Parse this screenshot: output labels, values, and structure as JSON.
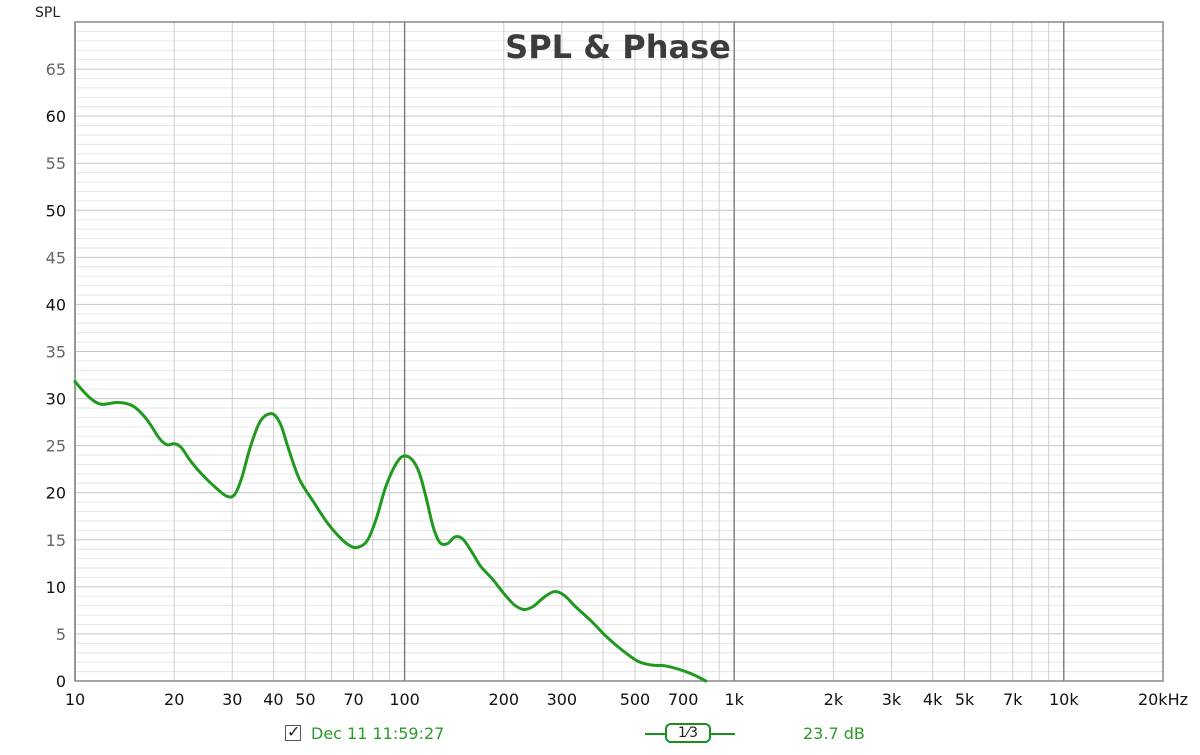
{
  "chart_data": {
    "type": "line",
    "title": "SPL & Phase",
    "ylabel": "SPL",
    "x_scale": "log",
    "xlim": [
      10,
      20000
    ],
    "ylim": [
      0,
      70
    ],
    "y_ticks": [
      0,
      5,
      10,
      15,
      20,
      25,
      30,
      35,
      40,
      45,
      50,
      55,
      60,
      65
    ],
    "x_ticks": [
      {
        "v": 10,
        "label": "10"
      },
      {
        "v": 20,
        "label": "20"
      },
      {
        "v": 30,
        "label": "30"
      },
      {
        "v": 40,
        "label": "40"
      },
      {
        "v": 50,
        "label": "50"
      },
      {
        "v": 70,
        "label": "70"
      },
      {
        "v": 100,
        "label": "100"
      },
      {
        "v": 200,
        "label": "200"
      },
      {
        "v": 300,
        "label": "300"
      },
      {
        "v": 500,
        "label": "500"
      },
      {
        "v": 700,
        "label": "700"
      },
      {
        "v": 1000,
        "label": "1k"
      },
      {
        "v": 2000,
        "label": "2k"
      },
      {
        "v": 3000,
        "label": "3k"
      },
      {
        "v": 4000,
        "label": "4k"
      },
      {
        "v": 5000,
        "label": "5k"
      },
      {
        "v": 7000,
        "label": "7k"
      },
      {
        "v": 10000,
        "label": "10k"
      },
      {
        "v": 20000,
        "label": "20kHz"
      }
    ],
    "grid": true,
    "series": [
      {
        "color": "#1f9a1f",
        "points": [
          [
            10,
            31.8
          ],
          [
            11,
            30.2
          ],
          [
            12,
            29.4
          ],
          [
            13.5,
            29.6
          ],
          [
            15,
            29.2
          ],
          [
            16.5,
            27.8
          ],
          [
            18,
            25.8
          ],
          [
            19,
            25.1
          ],
          [
            20,
            25.2
          ],
          [
            21,
            24.8
          ],
          [
            22.5,
            23.3
          ],
          [
            24.5,
            21.8
          ],
          [
            27,
            20.4
          ],
          [
            29,
            19.6
          ],
          [
            30.5,
            19.8
          ],
          [
            32,
            21.5
          ],
          [
            34,
            24.8
          ],
          [
            36.5,
            27.6
          ],
          [
            39.5,
            28.4
          ],
          [
            42,
            27.3
          ],
          [
            44.5,
            24.6
          ],
          [
            48,
            21.4
          ],
          [
            53,
            19.0
          ],
          [
            58,
            16.9
          ],
          [
            63,
            15.4
          ],
          [
            68,
            14.4
          ],
          [
            72,
            14.2
          ],
          [
            77,
            14.9
          ],
          [
            82,
            17.2
          ],
          [
            88,
            20.8
          ],
          [
            96,
            23.5
          ],
          [
            103,
            23.8
          ],
          [
            110,
            22.4
          ],
          [
            116,
            19.6
          ],
          [
            122,
            16.4
          ],
          [
            128,
            14.7
          ],
          [
            135,
            14.6
          ],
          [
            142,
            15.3
          ],
          [
            150,
            15.1
          ],
          [
            160,
            13.7
          ],
          [
            170,
            12.2
          ],
          [
            185,
            10.8
          ],
          [
            200,
            9.3
          ],
          [
            215,
            8.1
          ],
          [
            230,
            7.6
          ],
          [
            245,
            7.9
          ],
          [
            265,
            8.9
          ],
          [
            285,
            9.5
          ],
          [
            305,
            9.1
          ],
          [
            330,
            7.9
          ],
          [
            370,
            6.3
          ],
          [
            410,
            4.7
          ],
          [
            460,
            3.2
          ],
          [
            510,
            2.1
          ],
          [
            560,
            1.7
          ],
          [
            620,
            1.6
          ],
          [
            700,
            1.1
          ],
          [
            760,
            0.6
          ],
          [
            820,
            0.0
          ]
        ]
      }
    ],
    "legend": {
      "timestamp": "Dec 11 11:59:27",
      "smoothing": "1⁄3",
      "level": "23.7 dB"
    }
  }
}
